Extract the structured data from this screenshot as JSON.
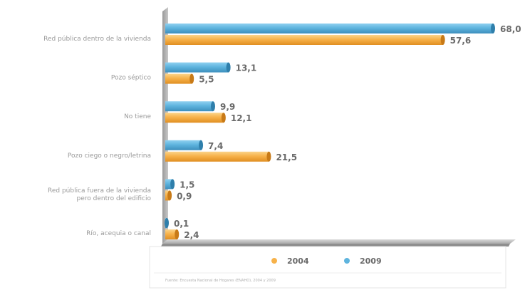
{
  "chart_data": {
    "type": "bar",
    "orientation": "horizontal",
    "categories": [
      [
        "Red pública dentro de la vivienda"
      ],
      [
        "Pozo séptico"
      ],
      [
        "No tiene"
      ],
      [
        "Pozo ciego o negro/letrina"
      ],
      [
        "Red pública fuera de la vivienda",
        "pero dentro del edificio"
      ],
      [
        "Río, acequia o canal"
      ]
    ],
    "series": [
      {
        "name": "2009",
        "color": "#5eb4de",
        "values": [
          68.0,
          13.1,
          9.9,
          7.4,
          1.5,
          0.1
        ],
        "labels": [
          "68,0",
          "13,1",
          "9,9",
          "7,4",
          "1,5",
          "0,1"
        ]
      },
      {
        "name": "2004",
        "color": "#f7b24a",
        "values": [
          57.6,
          5.5,
          12.1,
          21.5,
          0.9,
          2.4
        ],
        "labels": [
          "57,6",
          "5,5",
          "12,1",
          "21,5",
          "0,9",
          "2,4"
        ]
      }
    ],
    "legend": {
      "position": "bottom",
      "entries": [
        {
          "label": "2004",
          "color": "#f7b24a"
        },
        {
          "label": "2009",
          "color": "#5eb4de"
        }
      ]
    },
    "source": "Fuente: Encuesta Nacional de Hogares (ENAHO), 2004 y 2009",
    "xlim": [
      0,
      68
    ],
    "grid": false
  }
}
